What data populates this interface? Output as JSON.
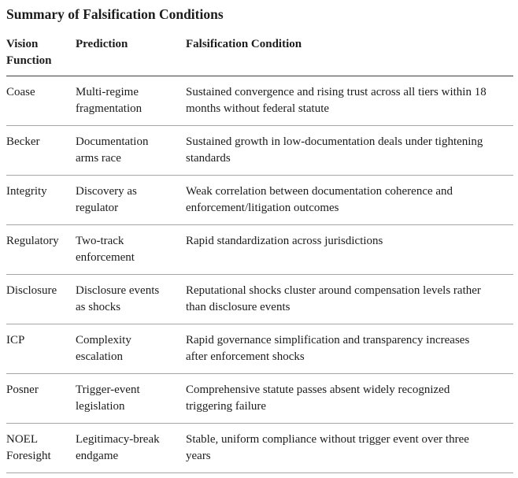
{
  "title": "Summary of Falsification Conditions",
  "colors": {
    "background": "#ffffff",
    "text": "#1c1c1c",
    "header_rule": "#3d3d3d",
    "row_rule": "#a6a6a6"
  },
  "table": {
    "columns": [
      {
        "label": "Vision\nFunction"
      },
      {
        "label": "Prediction"
      },
      {
        "label": "Falsification Condition"
      }
    ],
    "rows": [
      {
        "vision_function": "Coase",
        "prediction": "Multi-regime\nfragmentation",
        "falsification_condition": "Sustained convergence and rising trust across all tiers within 18\nmonths without federal statute"
      },
      {
        "vision_function": "Becker",
        "prediction": "Documentation\narms race",
        "falsification_condition": "Sustained growth in low-documentation deals under tightening\nstandards"
      },
      {
        "vision_function": "Integrity",
        "prediction": "Discovery as\nregulator",
        "falsification_condition": "Weak correlation between documentation coherence and\nenforcement/litigation outcomes"
      },
      {
        "vision_function": "Regulatory",
        "prediction": "Two-track\nenforcement",
        "falsification_condition": "Rapid standardization across jurisdictions"
      },
      {
        "vision_function": "Disclosure",
        "prediction": "Disclosure events\nas shocks",
        "falsification_condition": "Reputational shocks cluster around compensation levels rather\nthan disclosure events"
      },
      {
        "vision_function": "ICP",
        "prediction": "Complexity\nescalation",
        "falsification_condition": "Rapid governance simplification and transparency increases\nafter enforcement shocks"
      },
      {
        "vision_function": "Posner",
        "prediction": "Trigger-event\nlegislation",
        "falsification_condition": "Comprehensive statute passes absent widely recognized\ntriggering failure"
      },
      {
        "vision_function": "NOEL\nForesight",
        "prediction": "Legitimacy-break\nendgame",
        "falsification_condition": "Stable, uniform compliance without trigger event over three\nyears"
      }
    ]
  }
}
